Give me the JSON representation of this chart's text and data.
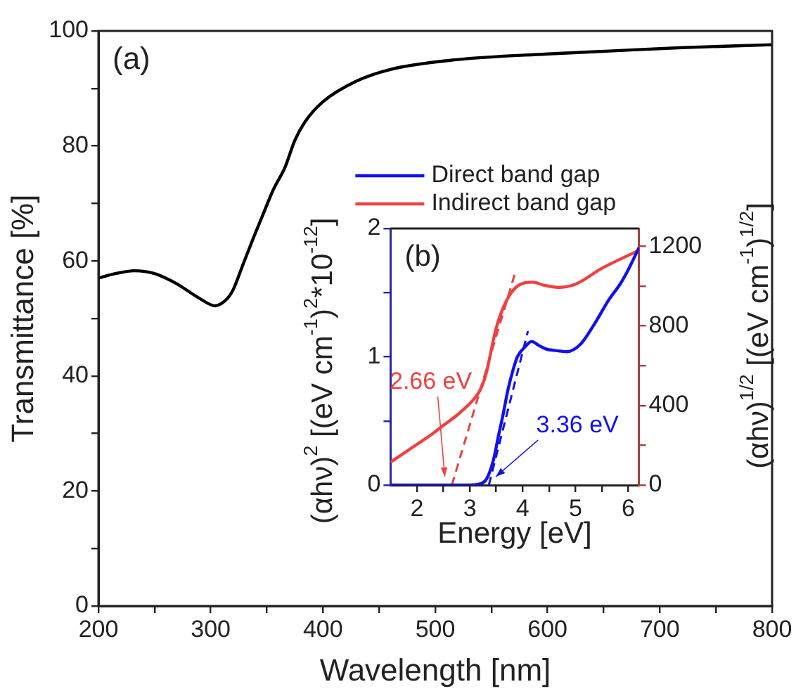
{
  "chart_data": [
    {
      "type": "line",
      "xlabel": "Wavelength [nm]",
      "ylabel": "Transmittance [%]",
      "x": [
        200,
        215,
        232,
        250,
        270,
        290,
        304,
        315,
        320,
        329,
        338,
        347,
        356,
        366,
        375,
        384,
        400,
        429,
        460,
        519,
        600,
        655,
        720,
        800
      ],
      "series": [
        {
          "color": "#000000",
          "values": [
            57,
            57.8,
            58.3,
            57.8,
            56,
            53.5,
            52.2,
            53.5,
            55,
            59.5,
            64,
            68.3,
            72.5,
            76.2,
            81,
            84.2,
            87.7,
            91.2,
            93.3,
            95,
            96,
            96.5,
            97.1,
            97.6
          ]
        }
      ],
      "xlim": [
        200,
        800
      ],
      "ylim": [
        0,
        100
      ],
      "xticks": [
        200,
        {
          "value": 250,
          "label": null
        },
        300,
        {
          "value": 350,
          "label": null
        },
        400,
        {
          "value": 450,
          "label": null
        },
        500,
        {
          "value": 550,
          "label": null
        },
        600,
        {
          "value": 650,
          "label": null
        },
        700,
        {
          "value": 750,
          "label": null
        },
        800
      ],
      "yticks": [
        0,
        {
          "value": 10,
          "label": null
        },
        20,
        {
          "value": 30,
          "label": null
        },
        40,
        {
          "value": 50,
          "label": null
        },
        60,
        {
          "value": 70,
          "label": null
        },
        80,
        {
          "value": 90,
          "label": null
        },
        100
      ],
      "annotations": [
        "(a)"
      ]
    },
    {
      "type": "line",
      "xlabel": "Energy [eV]",
      "ylabel": "(αhν)$^{2}$ [(eV cm$^{-1}$)$^{2}$*10$^{-12}$]",
      "y2label": "(αhν)$^{1/2}$ [(eV cm$^{-1}$)$^{1/2}$]",
      "legend": "top",
      "series": [
        {
          "name": "Direct band gap",
          "color": "#1010f0",
          "x": [
            1.5,
            3.0,
            3.2,
            3.32,
            3.45,
            3.54,
            3.63,
            3.72,
            3.82,
            3.9,
            4.05,
            4.17,
            4.3,
            4.45,
            4.6,
            4.84,
            5.1,
            5.35,
            5.64,
            5.85,
            6.0,
            6.2
          ],
          "values": [
            0,
            0,
            0.01,
            0.05,
            0.2,
            0.38,
            0.55,
            0.74,
            0.9,
            1.0,
            1.08,
            1.12,
            1.09,
            1.06,
            1.05,
            1.04,
            1.1,
            1.25,
            1.45,
            1.57,
            1.68,
            1.85
          ]
        },
        {
          "name": "Indirect band gap",
          "color": "#f04040",
          "axis": "y2",
          "x": [
            1.5,
            1.75,
            2.0,
            2.25,
            2.5,
            2.75,
            3.0,
            3.1,
            3.2,
            3.3,
            3.5,
            3.7,
            3.9,
            4.19,
            4.4,
            4.67,
            5.0,
            5.5,
            6.2
          ],
          "values": [
            115,
            160,
            205,
            250,
            300,
            350,
            410,
            440,
            480,
            552,
            790,
            930,
            1000,
            1020,
            1005,
            994,
            1010,
            1090,
            1180
          ]
        },
        {
          "type": "line",
          "line_style": "dashed",
          "color": "#1010f0",
          "x": [
            3.36,
            4.1
          ],
          "values": [
            0,
            1.2
          ]
        },
        {
          "type": "line",
          "line_style": "dashed",
          "color": "#f04040",
          "axis": "y2",
          "x": [
            2.66,
            3.85
          ],
          "values": [
            0,
            1060
          ]
        }
      ],
      "xlim": [
        1.5,
        6.2
      ],
      "ylim": [
        0,
        2
      ],
      "y2lim": [
        0,
        1290
      ],
      "xticks": [
        2,
        {
          "value": 2.5,
          "label": null
        },
        3,
        {
          "value": 3.5,
          "label": null
        },
        4,
        {
          "value": 4.5,
          "label": null
        },
        5,
        {
          "value": 5.5,
          "label": null
        },
        6
      ],
      "yticks": [
        0,
        {
          "value": 0.5,
          "label": null
        },
        1,
        {
          "value": 1.5,
          "label": null
        },
        2
      ],
      "y2ticks": [
        0,
        {
          "value": 200,
          "label": null
        },
        400,
        {
          "value": 600,
          "label": null
        },
        800,
        {
          "value": 1000,
          "label": null
        },
        1200
      ],
      "annotations": [
        "(b)",
        {
          "text": "2.66 eV",
          "x": 2.66,
          "y": 0
        },
        {
          "text": "3.36 eV",
          "x": 3.36,
          "y": 0
        }
      ]
    }
  ]
}
